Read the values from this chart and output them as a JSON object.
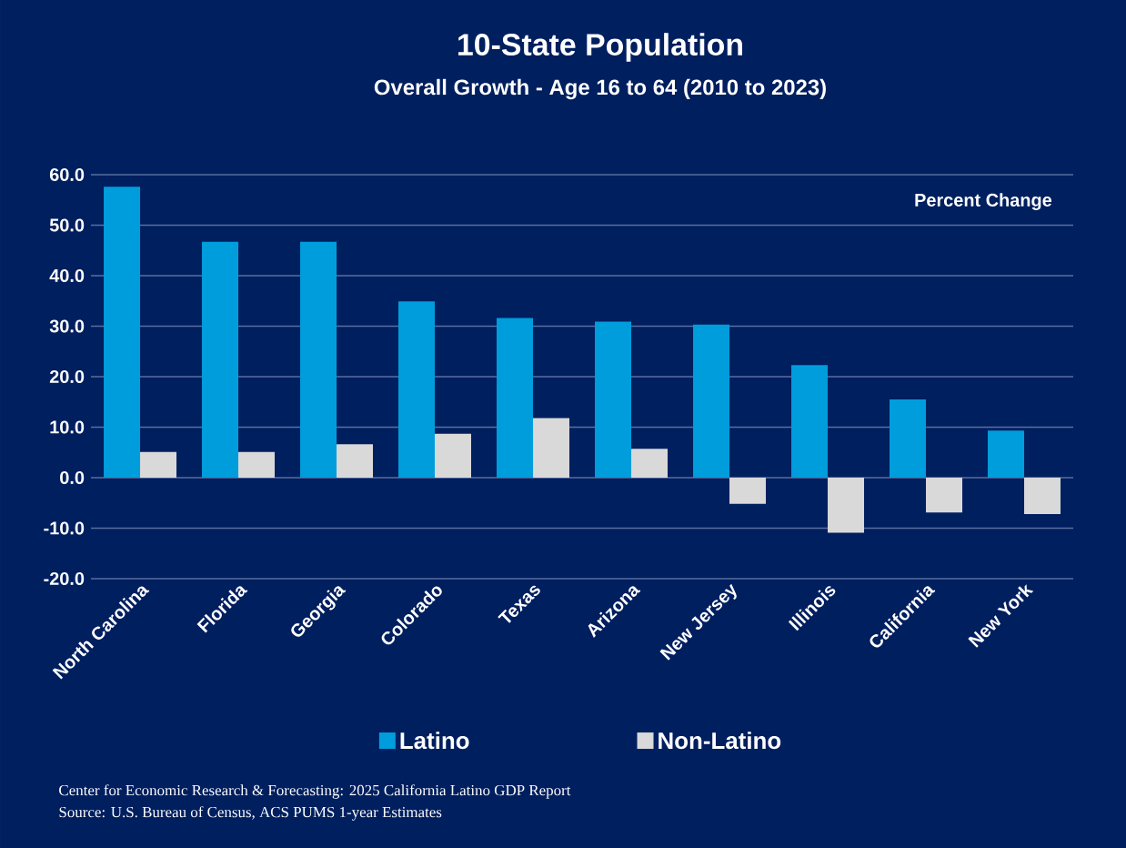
{
  "chart_data": {
    "type": "bar",
    "title": "10-State Population",
    "subtitle": "Overall Growth - Age 16 to 64 (2010 to 2023)",
    "categories": [
      "North Carolina",
      "Florida",
      "Georgia",
      "Colorado",
      "Texas",
      "Arizona",
      "New Jersey",
      "Illinois",
      "California",
      "New York"
    ],
    "series": [
      {
        "name": "Latino",
        "color": "#009ddc",
        "values": [
          57.6,
          46.7,
          46.7,
          34.9,
          31.6,
          30.9,
          30.3,
          22.3,
          15.5,
          9.3
        ]
      },
      {
        "name": "Non-Latino",
        "color": "#d9d9d9",
        "values": [
          5.1,
          5.1,
          6.6,
          8.7,
          11.8,
          5.7,
          -5.2,
          -10.9,
          -6.9,
          -7.2
        ]
      }
    ],
    "ylim": [
      -20,
      60
    ],
    "yticks": [
      {
        "value": -20,
        "label": "-20.0"
      },
      {
        "value": -10,
        "label": "-10.0"
      },
      {
        "value": 0,
        "label": "0.0"
      },
      {
        "value": 10,
        "label": "10.0"
      },
      {
        "value": 20,
        "label": "20.0"
      },
      {
        "value": 30,
        "label": "30.0"
      },
      {
        "value": 40,
        "label": "40.0"
      },
      {
        "value": 50,
        "label": "50.0"
      },
      {
        "value": 60,
        "label": "60.0"
      }
    ],
    "grid": "y",
    "legend": "bottom",
    "annotations": [
      "Percent Change",
      "Center for Economic Research & Forecasting: 2025 California Latino GDP Report",
      "Source: U.S. Bureau of Census, ACS PUMS 1-year Estimates"
    ]
  }
}
